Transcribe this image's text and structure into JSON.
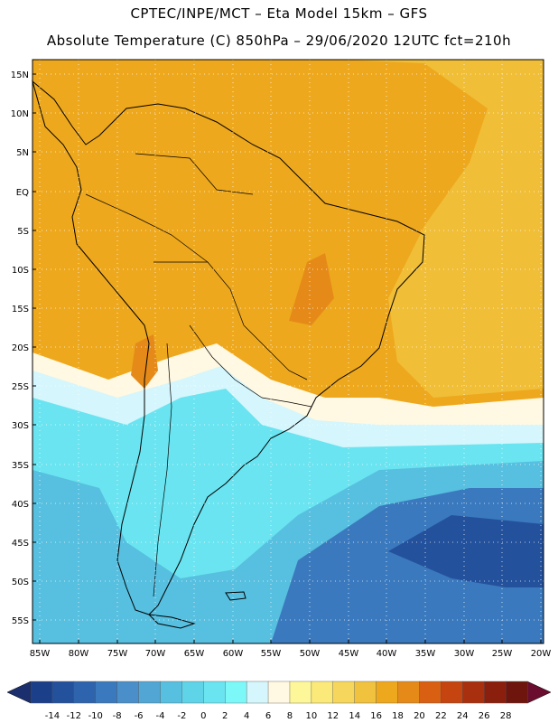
{
  "header": {
    "line1": "CPTEC/INPE/MCT –  Eta Model 15km – GFS",
    "line2": "Absolute Temperature (C) 850hPa – 29/06/2020 12UTC fct=210h"
  },
  "axes": {
    "lat_labels": [
      "15N",
      "10N",
      "5N",
      "EQ",
      "5S",
      "10S",
      "15S",
      "20S",
      "25S",
      "30S",
      "35S",
      "40S",
      "45S",
      "50S",
      "55S"
    ],
    "lon_labels": [
      "85W",
      "80W",
      "75W",
      "70W",
      "65W",
      "60W",
      "55W",
      "50W",
      "45W",
      "40W",
      "35W",
      "30W",
      "25W",
      "20W"
    ]
  },
  "colorbar": {
    "ticks": [
      "-14",
      "-12",
      "-10",
      "-8",
      "-6",
      "-4",
      "-2",
      "0",
      "2",
      "4",
      "6",
      "8",
      "10",
      "12",
      "14",
      "16",
      "18",
      "20",
      "22",
      "24",
      "26",
      "28"
    ],
    "colors": [
      "#1c3f8a",
      "#24519c",
      "#2e64ad",
      "#3a79bd",
      "#4a8fc9",
      "#51a6d4",
      "#57bfdf",
      "#5fd4e8",
      "#6ae4f0",
      "#7df8f8",
      "#d4f6fc",
      "#fff8e2",
      "#fdf79a",
      "#fbe979",
      "#f6d65c",
      "#f1c23d",
      "#eea81d",
      "#e58a19",
      "#d95f12",
      "#c54410",
      "#a8300e",
      "#8a1f0d",
      "#6e150e"
    ],
    "low_arrow_color": "#1b2f6e",
    "high_arrow_color": "#6b0d2e"
  },
  "colors": {
    "warm_orange": "#eea81d",
    "yellow": "#f1c23d",
    "cyan": "#6ae4f0",
    "blue": "#3a79bd",
    "navy": "#24519c"
  }
}
